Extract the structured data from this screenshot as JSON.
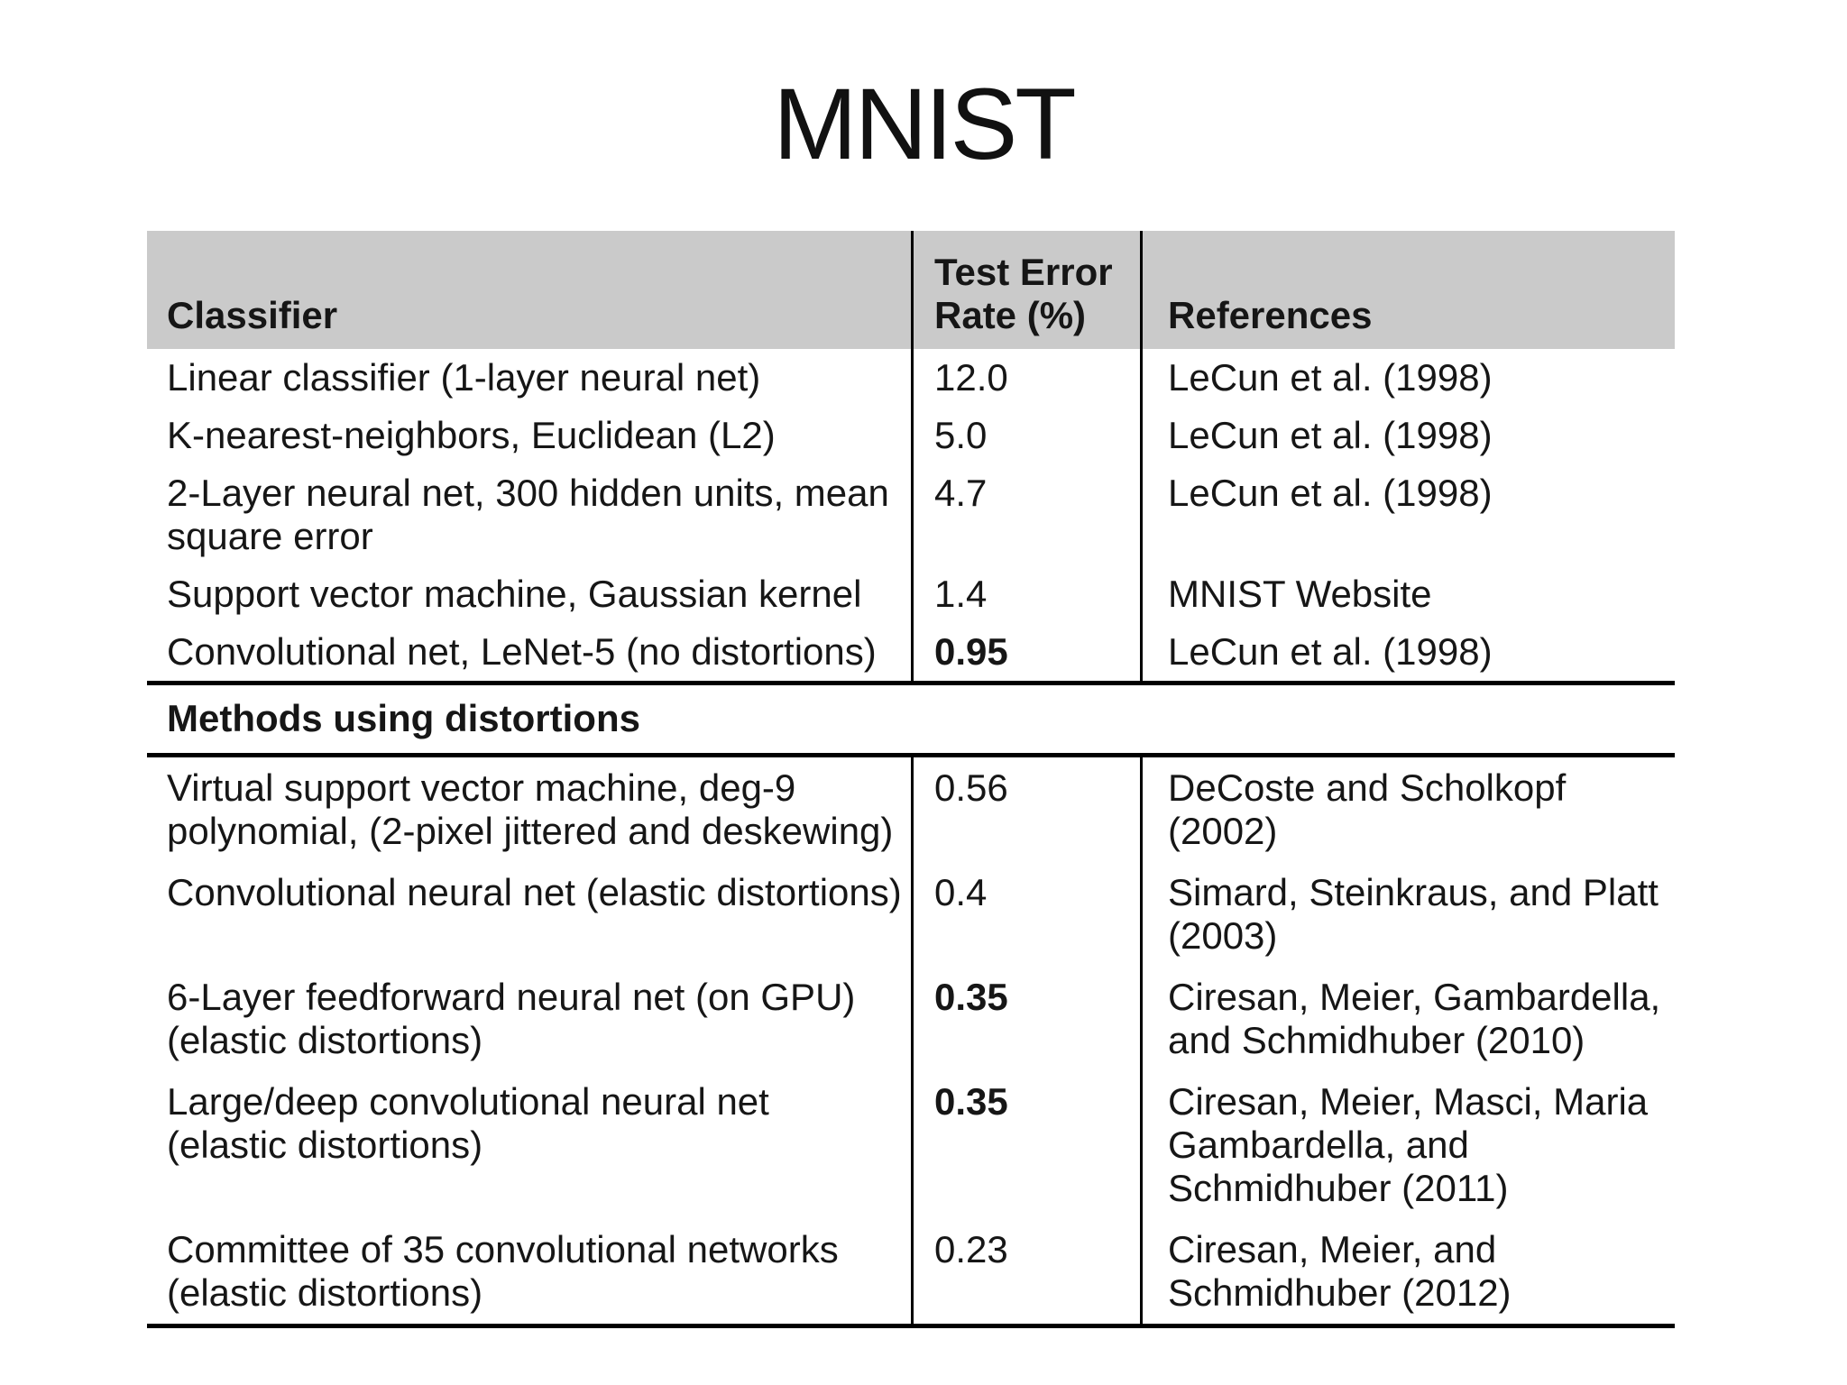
{
  "page": {
    "title": "MNIST"
  },
  "table": {
    "header": {
      "classifier": "Classifier",
      "error_rate": "Test Error\nRate (%)",
      "references": "References",
      "bg_color": "#cacaca"
    },
    "rows_main": [
      {
        "classifier": "Linear classifier (1-layer neural net)",
        "error_rate": "12.0",
        "reference": "LeCun et al. (1998)"
      },
      {
        "classifier": "K-nearest-neighbors, Euclidean (L2)",
        "error_rate": "5.0",
        "reference": "LeCun et al. (1998)"
      },
      {
        "classifier": "2-Layer neural net, 300 hidden units, mean\nsquare error",
        "error_rate": "4.7",
        "reference": "LeCun et al. (1998)"
      },
      {
        "classifier": "Support vector machine, Gaussian kernel",
        "error_rate": "1.4",
        "reference": "MNIST Website"
      },
      {
        "classifier": "Convolutional net, LeNet-5 (no distortions)",
        "error_rate": "0.95",
        "reference": "LeCun et al. (1998)"
      }
    ],
    "section_header": "Methods using distortions",
    "rows_distortions": [
      {
        "classifier": "Virtual support vector machine, deg-9\npolynomial, (2-pixel jittered and deskewing)",
        "error_rate": "0.56",
        "reference": "DeCoste and Scholkopf\n(2002)"
      },
      {
        "classifier": "Convolutional neural net (elastic distortions)",
        "error_rate": "0.4",
        "reference": "Simard, Steinkraus, and Platt\n(2003)"
      },
      {
        "classifier": "6-Layer feedforward neural net (on GPU)\n(elastic distortions)",
        "error_rate": "0.35",
        "reference": "Ciresan, Meier, Gambardella,\nand Schmidhuber (2010)"
      },
      {
        "classifier": "Large/deep convolutional neural net\n(elastic distortions)",
        "error_rate": "0.35",
        "reference": "Ciresan, Meier, Masci, Maria\nGambardella, and\nSchmidhuber (2011)"
      },
      {
        "classifier": "Committee of 35 convolutional networks\n(elastic distortions)",
        "error_rate": "0.23",
        "reference": "Ciresan, Meier, and\nSchmidhuber (2012)"
      }
    ]
  }
}
